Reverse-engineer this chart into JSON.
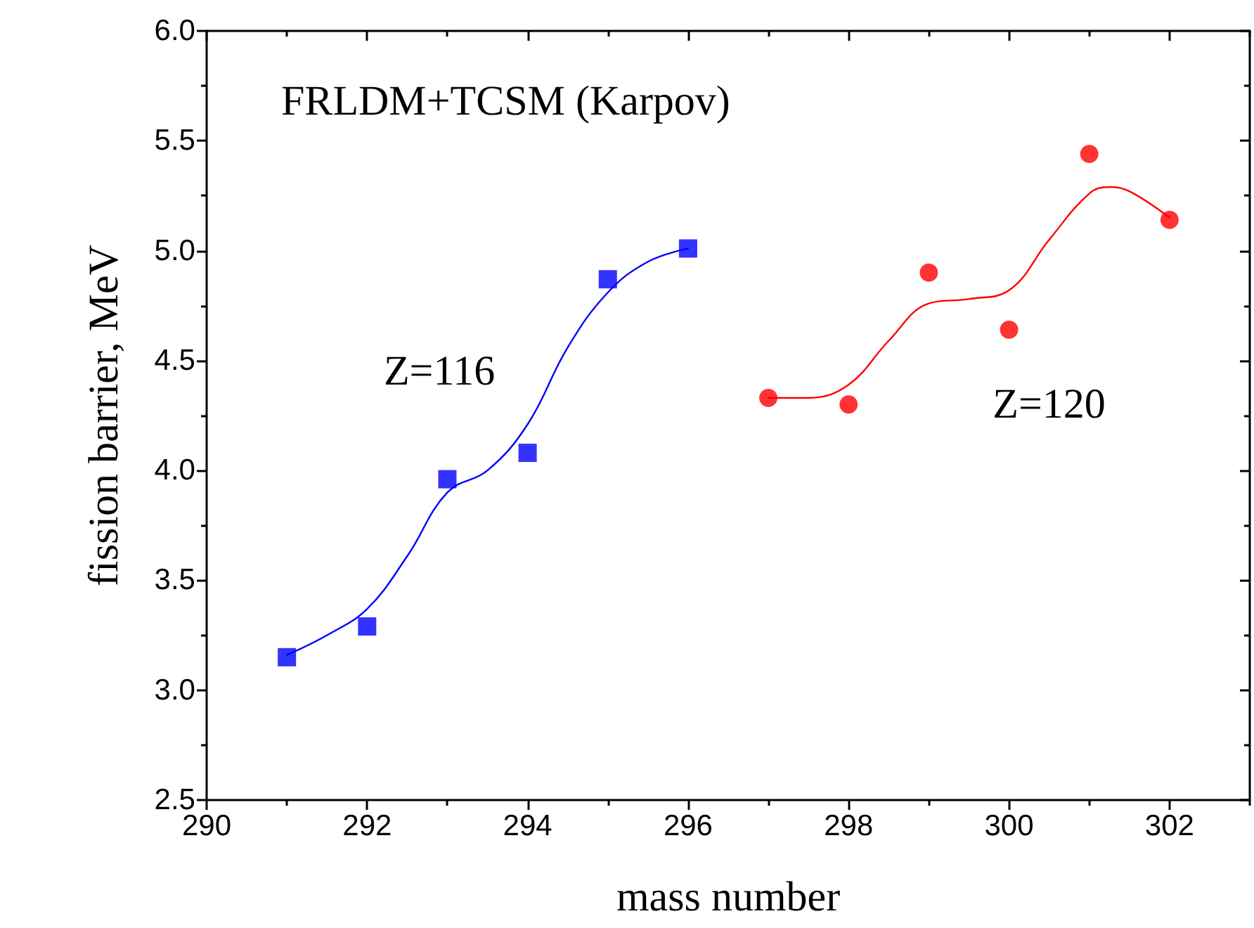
{
  "chart_data": {
    "type": "scatter",
    "title": "FRLDM+TCSM (Karpov)",
    "xlabel": "mass number",
    "ylabel": "fission barrier, MeV",
    "series": [
      {
        "marker": "square",
        "color": "#0000ff",
        "x": [
          291,
          292,
          293,
          294,
          295,
          296
        ],
        "values": [
          3.15,
          3.29,
          3.96,
          4.08,
          4.87,
          5.01
        ]
      },
      {
        "marker": "circle",
        "color": "#ff0000",
        "x": [
          297,
          298,
          299,
          300,
          301,
          302
        ],
        "values": [
          4.33,
          4.3,
          4.9,
          4.64,
          5.44,
          5.14
        ]
      },
      {
        "type": "line",
        "marker": "none",
        "color": "#0000ff",
        "x": [
          291,
          291.5,
          292,
          292.5,
          293,
          293.5,
          294,
          294.5,
          295,
          295.5,
          296
        ],
        "values": [
          3.16,
          3.25,
          3.37,
          3.61,
          3.9,
          4.0,
          4.21,
          4.56,
          4.81,
          4.95,
          5.01
        ]
      },
      {
        "type": "line",
        "marker": "none",
        "color": "#ff0000",
        "x": [
          297,
          297.5,
          298,
          298.5,
          299,
          299.5,
          300,
          300.5,
          301,
          301.25,
          301.5,
          302
        ],
        "values": [
          4.33,
          4.33,
          4.39,
          4.59,
          4.76,
          4.78,
          4.82,
          5.05,
          5.26,
          5.29,
          5.27,
          5.15
        ]
      }
    ],
    "annotations": [
      "Z=116",
      "Z=120"
    ],
    "xlim": [
      290,
      303
    ],
    "xticks": [
      290,
      292,
      294,
      296,
      298,
      300,
      302
    ],
    "ylim": [
      2.5,
      6.0
    ],
    "yticks": [
      {
        "value": 2.5,
        "label": "2.5"
      },
      {
        "value": 3.0,
        "label": "3.0"
      },
      {
        "value": 3.5,
        "label": "3.5"
      },
      {
        "value": 4.0,
        "label": "4.0"
      },
      {
        "value": 4.5,
        "label": "4.5"
      },
      {
        "value": 5.0,
        "label": "5.0"
      },
      {
        "value": 5.5,
        "label": "5.5"
      },
      {
        "value": 6.0,
        "label": "6.0"
      }
    ],
    "grid": false
  }
}
